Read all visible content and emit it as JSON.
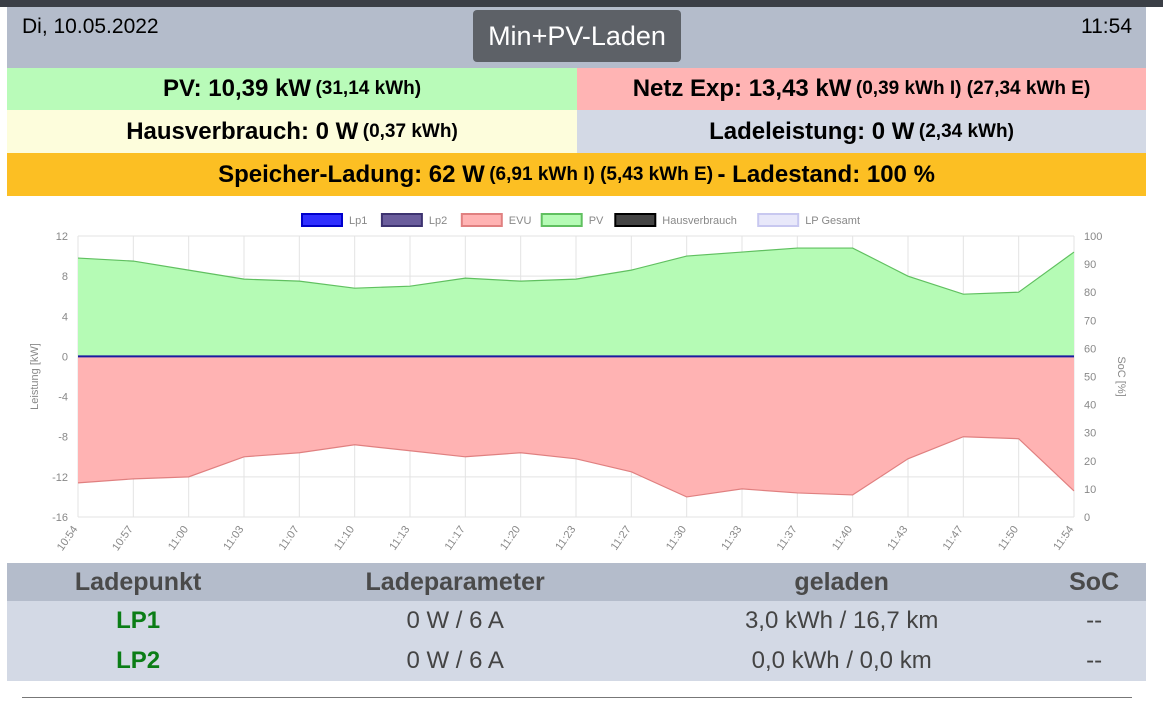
{
  "header": {
    "date": "Di, 10.05.2022",
    "time": "11:54",
    "mode": "Min+PV-Laden"
  },
  "pv": {
    "label": "PV: 10,39 kW",
    "detail": "(31,14 kWh)"
  },
  "netz": {
    "label": "Netz Exp: 13,43 kW",
    "detail": "(0,39 kWh I) (27,34 kWh E)"
  },
  "haus": {
    "label": "Hausverbrauch: 0 W",
    "detail": "(0,37 kWh)"
  },
  "ladeleistung": {
    "label": "Ladeleistung: 0 W",
    "detail": "(2,34 kWh)"
  },
  "speicher": {
    "label": "Speicher-Ladung: 62 W",
    "detail": "(6,91 kWh I) (5,43 kWh E)",
    "soc_label": "- Ladestand: 100 %"
  },
  "chart_data": {
    "type": "area",
    "ylabel": "Leistung [kW]",
    "y2label": "SoC [%]",
    "ylim": [
      -16,
      12
    ],
    "y2lim": [
      0,
      100
    ],
    "yticks": [
      "12",
      "8",
      "4",
      "0",
      "-4",
      "-8",
      "-12",
      "-16"
    ],
    "y2ticks": [
      "100",
      "90",
      "80",
      "70",
      "60",
      "50",
      "40",
      "30",
      "20",
      "10",
      "0"
    ],
    "x": [
      "10:54",
      "10:57",
      "11:00",
      "11:03",
      "11:07",
      "11:10",
      "11:13",
      "11:17",
      "11:20",
      "11:23",
      "11:27",
      "11:30",
      "11:33",
      "11:37",
      "11:40",
      "11:43",
      "11:47",
      "11:50",
      "11:54"
    ],
    "legend": [
      {
        "name": "Lp1",
        "color": "#3030ff",
        "border": "#0000cc"
      },
      {
        "name": "Lp2",
        "color": "#6a5d9c",
        "border": "#3d3370"
      },
      {
        "name": "EVU",
        "color": "#ffb3b3",
        "border": "#e08080"
      },
      {
        "name": "PV",
        "color": "#b5fbb5",
        "border": "#60c060"
      },
      {
        "name": "Hausverbrauch",
        "color": "#444444",
        "border": "#000000"
      },
      {
        "name": "LP Gesamt",
        "color": "#e8e8fa",
        "border": "#c8c8f0"
      }
    ],
    "series": [
      {
        "name": "PV",
        "values": [
          9.8,
          9.5,
          8.6,
          7.7,
          7.5,
          6.8,
          7.0,
          7.8,
          7.5,
          7.7,
          8.6,
          10.0,
          10.4,
          10.8,
          10.8,
          8.0,
          6.2,
          6.4,
          10.4
        ]
      },
      {
        "name": "EVU",
        "values": [
          -12.6,
          -12.2,
          -12.0,
          -10.0,
          -9.6,
          -8.8,
          -9.4,
          -10.0,
          -9.6,
          -10.2,
          -11.5,
          -14.0,
          -13.2,
          -13.6,
          -13.8,
          -10.2,
          -8.0,
          -8.2,
          -13.4
        ]
      }
    ]
  },
  "table": {
    "headers": [
      "Ladepunkt",
      "Ladeparameter",
      "geladen",
      "SoC"
    ],
    "rows": [
      {
        "lp": "LP1",
        "param": "0 W / 6 A",
        "geladen": "3,0 kWh / 16,7 km",
        "soc": "--"
      },
      {
        "lp": "LP2",
        "param": "0 W / 6 A",
        "geladen": "0,0 kWh / 0,0 km",
        "soc": "--"
      }
    ]
  }
}
